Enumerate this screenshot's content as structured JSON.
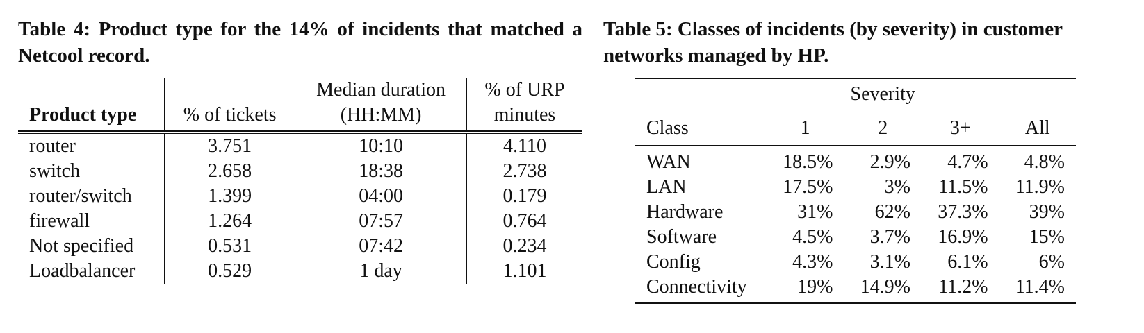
{
  "table4": {
    "caption": "Table 4: Product type for the 14% of incidents that matched a Netcool record.",
    "headers": [
      "Product type",
      "% of tickets",
      "Median duration (HH:MM)",
      "% of URP minutes"
    ],
    "header_lines": {
      "median_1": "Median duration",
      "median_2": "(HH:MM)",
      "urp_1": "% of URP",
      "urp_2": "minutes"
    },
    "rows": [
      [
        "router",
        "3.751",
        "10:10",
        "4.110"
      ],
      [
        "switch",
        "2.658",
        "18:38",
        "2.738"
      ],
      [
        "router/switch",
        "1.399",
        "04:00",
        "0.179"
      ],
      [
        "firewall",
        "1.264",
        "07:57",
        "0.764"
      ],
      [
        "Not specified",
        "0.531",
        "07:42",
        "0.234"
      ],
      [
        "Loadbalancer",
        "0.529",
        "1 day",
        "1.101"
      ]
    ]
  },
  "table5": {
    "caption": "Table 5: Classes of incidents (by severity) in customer networks managed by HP.",
    "group_header": "Severity",
    "headers": [
      "Class",
      "1",
      "2",
      "3+",
      "All"
    ],
    "rows": [
      [
        "WAN",
        "18.5%",
        "2.9%",
        "4.7%",
        "4.8%"
      ],
      [
        "LAN",
        "17.5%",
        "3%",
        "11.5%",
        "11.9%"
      ],
      [
        "Hardware",
        "31%",
        "62%",
        "37.3%",
        "39%"
      ],
      [
        "Software",
        "4.5%",
        "3.7%",
        "16.9%",
        "15%"
      ],
      [
        "Config",
        "4.3%",
        "3.1%",
        "6.1%",
        "6%"
      ],
      [
        "Connectivity",
        "19%",
        "14.9%",
        "11.2%",
        "11.4%"
      ]
    ]
  }
}
